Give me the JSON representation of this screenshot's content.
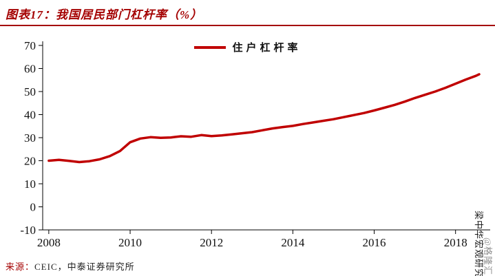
{
  "header": {
    "title": "图表17：我国居民部门杠杆率（%）"
  },
  "legend": {
    "label": "住户杠杆率"
  },
  "footer": {
    "source_prefix": "来源：",
    "source_text": "CEIC，中泰证券研究所"
  },
  "watermarks": {
    "primary": "梁中华宏观研究",
    "secondary": "@格隆汇"
  },
  "colors": {
    "accent": "#a40000",
    "line": "#c00000",
    "axis": "#000000",
    "tick_text": "#111111",
    "watermark_gray": "#8f8f8f"
  },
  "chart_data": {
    "type": "line",
    "title": "我国居民部门杠杆率（%）",
    "xlabel": "",
    "ylabel": "",
    "xlim": [
      2007.85,
      2018.75
    ],
    "ylim": [
      -10,
      70
    ],
    "x_ticks": [
      2008,
      2010,
      2012,
      2014,
      2016,
      2018
    ],
    "y_ticks": [
      -10,
      0,
      10,
      20,
      30,
      40,
      50,
      60,
      70
    ],
    "grid": false,
    "legend_position": "top-center",
    "series": [
      {
        "name": "住户杠杆率",
        "points": [
          [
            2008.0,
            20.0
          ],
          [
            2008.25,
            20.4
          ],
          [
            2008.5,
            19.9
          ],
          [
            2008.75,
            19.4
          ],
          [
            2009.0,
            19.8
          ],
          [
            2009.25,
            20.6
          ],
          [
            2009.5,
            22.0
          ],
          [
            2009.75,
            24.2
          ],
          [
            2010.0,
            28.0
          ],
          [
            2010.25,
            29.6
          ],
          [
            2010.5,
            30.2
          ],
          [
            2010.75,
            29.9
          ],
          [
            2011.0,
            30.1
          ],
          [
            2011.25,
            30.6
          ],
          [
            2011.5,
            30.4
          ],
          [
            2011.75,
            31.1
          ],
          [
            2012.0,
            30.7
          ],
          [
            2012.25,
            31.0
          ],
          [
            2012.5,
            31.4
          ],
          [
            2012.75,
            31.9
          ],
          [
            2013.0,
            32.4
          ],
          [
            2013.25,
            33.2
          ],
          [
            2013.5,
            34.0
          ],
          [
            2013.75,
            34.6
          ],
          [
            2014.0,
            35.1
          ],
          [
            2014.25,
            35.9
          ],
          [
            2014.5,
            36.6
          ],
          [
            2014.75,
            37.3
          ],
          [
            2015.0,
            38.0
          ],
          [
            2015.25,
            38.9
          ],
          [
            2015.5,
            39.8
          ],
          [
            2015.75,
            40.7
          ],
          [
            2016.0,
            41.8
          ],
          [
            2016.25,
            43.0
          ],
          [
            2016.5,
            44.2
          ],
          [
            2016.75,
            45.6
          ],
          [
            2017.0,
            47.2
          ],
          [
            2017.25,
            48.6
          ],
          [
            2017.5,
            50.0
          ],
          [
            2017.75,
            51.6
          ],
          [
            2018.0,
            53.4
          ],
          [
            2018.25,
            55.2
          ],
          [
            2018.5,
            56.8
          ],
          [
            2018.58,
            57.5
          ]
        ]
      }
    ]
  }
}
